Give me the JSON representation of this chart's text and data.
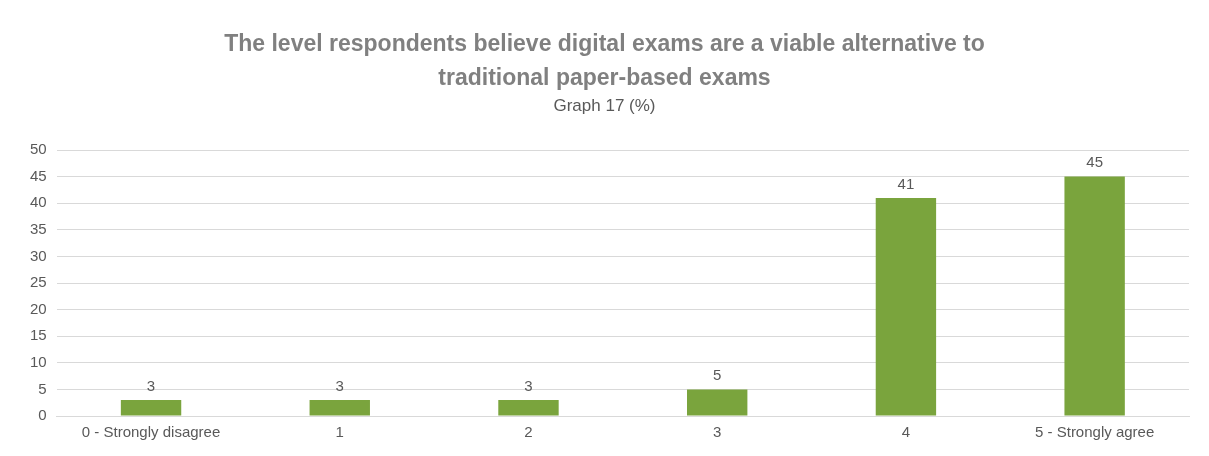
{
  "chart_data": {
    "type": "bar",
    "title": "The level respondents believe digital exams are a viable alternative to traditional paper-based exams",
    "subtitle": "Graph 17 (%)",
    "categories": [
      "0 - Strongly disagree",
      "1",
      "2",
      "3",
      "4",
      "5 - Strongly agree"
    ],
    "values": [
      3,
      3,
      3,
      5,
      41,
      45
    ],
    "color": "#7aa43d",
    "ylim": [
      0,
      50
    ],
    "yticks": [
      0,
      5,
      10,
      15,
      20,
      25,
      30,
      35,
      40,
      45,
      50
    ],
    "grid": "y",
    "data_labels": true,
    "legend": false
  }
}
